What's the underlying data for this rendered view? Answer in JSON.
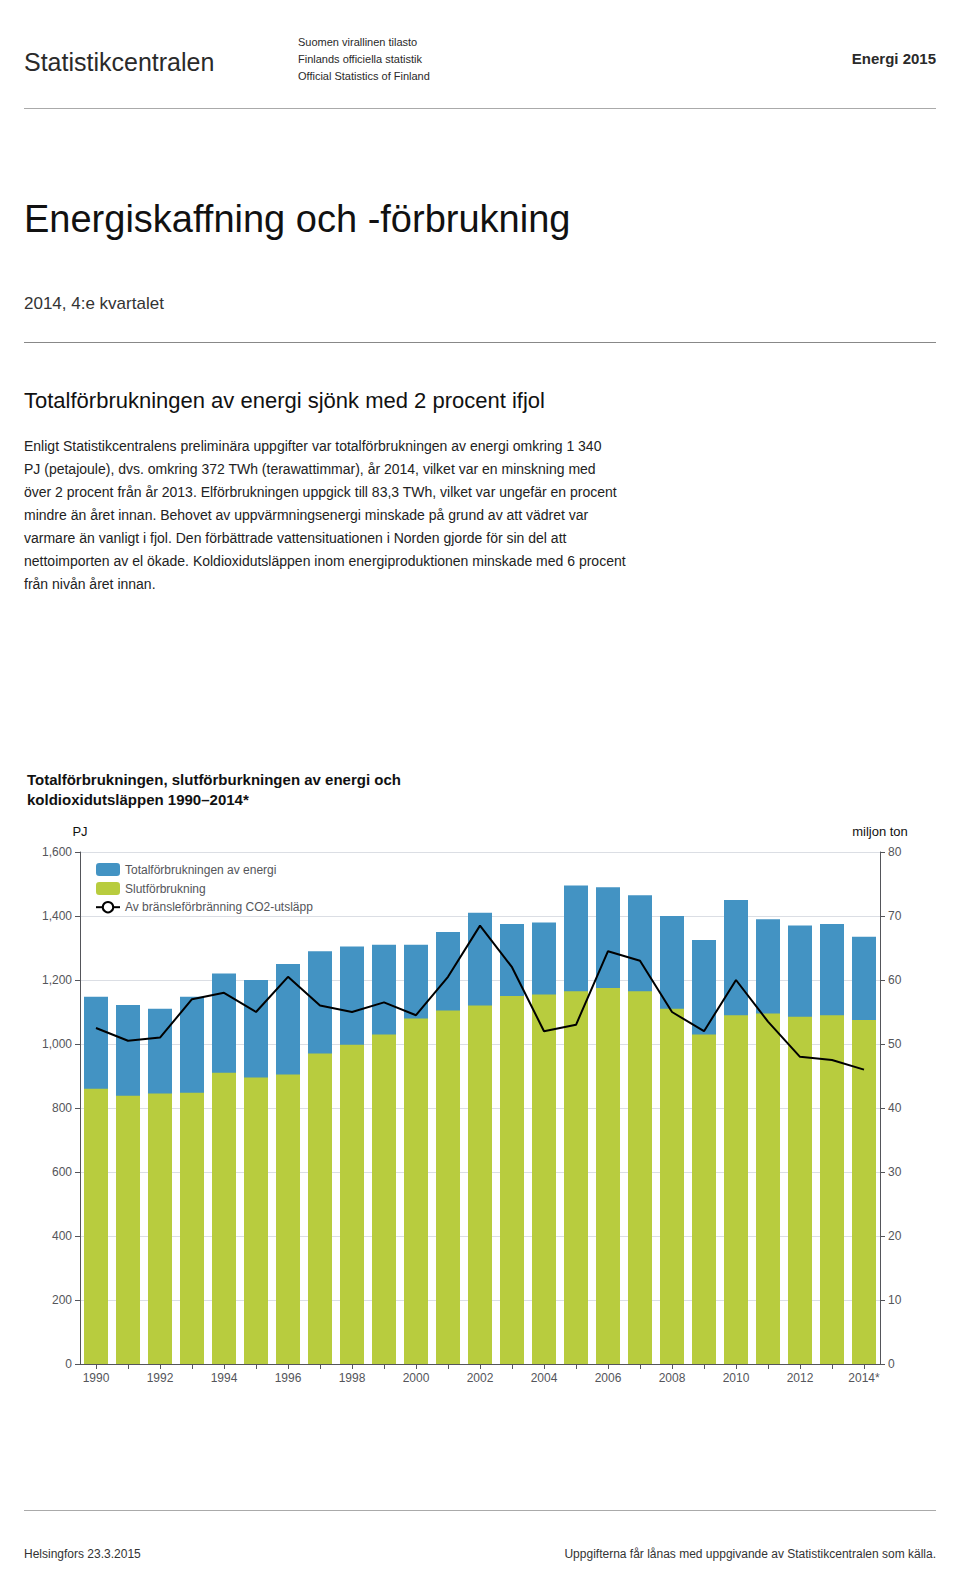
{
  "header": {
    "left": "Statistikcentralen",
    "sub": [
      "Suomen virallinen tilasto",
      "Finlands officiella statistik",
      "Official Statistics of Finland"
    ],
    "right": "Energi 2015"
  },
  "title": "Energiskaffning och -förbrukning",
  "subtitle": "2014, 4:e kvartalet",
  "section_title": "Totalförbrukningen av energi sjönk med 2 procent ifjol",
  "body": [
    "Enligt Statistikcentralens preliminära uppgifter var totalförbrukningen av energi omkring 1 340",
    "PJ (petajoule), dvs. omkring 372 TWh (terawattimmar), år 2014, vilket var en minskning med",
    "över 2 procent från år 2013. Elförbrukningen uppgick till 83,3 TWh, vilket var ungefär en procent",
    "mindre än året innan. Behovet av uppvärmningsenergi minskade på grund av att vädret var",
    "varmare än vanligt i fjol. Den förbättrade vattensituationen i Norden gjorde för sin del att",
    "nettoimporten av el ökade. Koldioxidutsläppen inom energiproduktionen minskade med 6 procent",
    "från nivån året innan."
  ],
  "footer": {
    "left": "Helsingfors 23.3.2015",
    "right": "Uppgifterna får lånas med uppgivande av Statistikcentralen som källa."
  },
  "chart_data": {
    "type": "bar",
    "title": "Totalförbrukningen, slutförburkningen av energi och\nkoldioxidutsläppen 1990–2014*",
    "categories": [
      "1990",
      null,
      "1992",
      null,
      "1994",
      null,
      "1996",
      null,
      "1998",
      null,
      "2000",
      null,
      "2002",
      null,
      "2004",
      null,
      "2006",
      null,
      "2008",
      null,
      "2010",
      null,
      "2012",
      null,
      "2014*"
    ],
    "series": [
      {
        "name": "Totalförbrukningen av energi",
        "type": "bar",
        "color": "#4393c3",
        "values": [
          1148,
          1122,
          1110,
          1148,
          1220,
          1200,
          1250,
          1290,
          1305,
          1310,
          1310,
          1350,
          1410,
          1375,
          1380,
          1495,
          1490,
          1465,
          1400,
          1325,
          1450,
          1390,
          1370,
          1375,
          1335
        ]
      },
      {
        "name": "Slutförbrukning",
        "type": "bar",
        "color": "#b8cc3e",
        "values": [
          860,
          838,
          845,
          848,
          910,
          895,
          905,
          970,
          998,
          1030,
          1080,
          1105,
          1120,
          1150,
          1155,
          1165,
          1175,
          1165,
          1110,
          1030,
          1090,
          1095,
          1085,
          1090,
          1075
        ]
      },
      {
        "name": "Av bränsleförbränning CO2-utsläpp",
        "type": "line",
        "color": "#000000",
        "axis": "y2",
        "values": [
          52.5,
          50.5,
          51.0,
          57.0,
          58.0,
          55.0,
          60.5,
          56.0,
          55.0,
          56.5,
          54.5,
          60.5,
          68.5,
          62.0,
          52.0,
          53.0,
          64.5,
          63.0,
          55.0,
          52.0,
          60.0,
          53.5,
          48.0,
          47.5,
          46.0
        ]
      }
    ],
    "ylabel": "PJ",
    "y2label": "miljon ton",
    "ylim": [
      0,
      1600
    ],
    "yticks": [
      0,
      200,
      400,
      600,
      800,
      1000,
      1200,
      1400,
      1600
    ],
    "y2lim": [
      0,
      80
    ],
    "y2ticks": [
      0,
      10,
      20,
      30,
      40,
      50,
      60,
      70,
      80
    ],
    "stacked": false,
    "grid": true,
    "legend": "upper left"
  }
}
